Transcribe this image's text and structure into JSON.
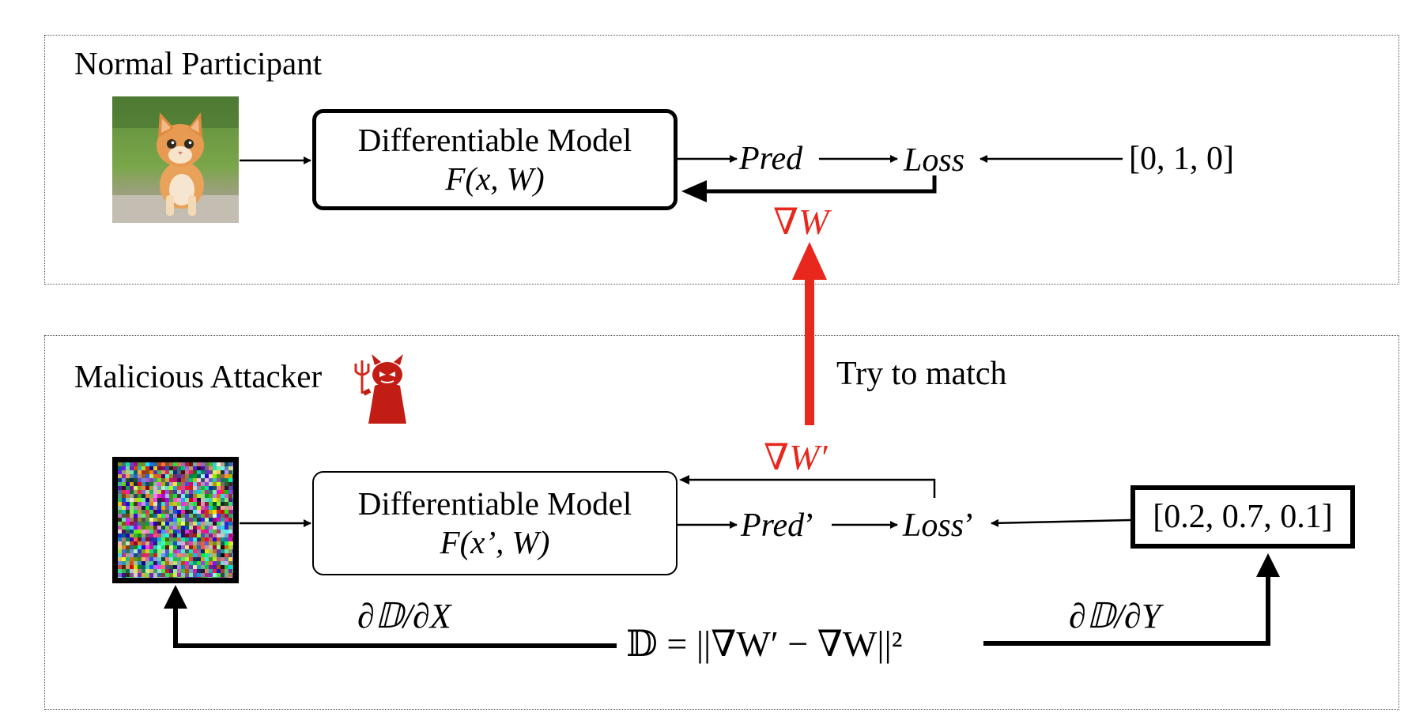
{
  "top_panel": {
    "title": "Normal Participant",
    "model_line1": "Differentiable Model",
    "model_line2": "F(x, W)",
    "pred": "Pred",
    "loss": "Loss",
    "label": "[0, 1, 0]",
    "gradient": "∇W"
  },
  "bottom_panel": {
    "title": "Malicious Attacker",
    "model_line1": "Differentiable Model",
    "model_line2": "F(x’, W)",
    "pred": "Pred",
    "pred_suffix": "’",
    "loss": "Loss",
    "loss_suffix": "’",
    "label": "[0.2, 0.7, 0.1]",
    "gradient": "∇W′",
    "match_text": "Try to match",
    "distance_eq": "𝔻 = ||∇W′ − ∇W||²",
    "grad_x": "∂𝔻/∂X",
    "grad_y": "∂𝔻/∂Y"
  },
  "colors": {
    "accent_red": "#e8281d",
    "border": "#000000"
  },
  "icons": {
    "top_image": "kitten-photo",
    "bottom_image": "random-noise-image",
    "attacker": "devil-icon"
  }
}
